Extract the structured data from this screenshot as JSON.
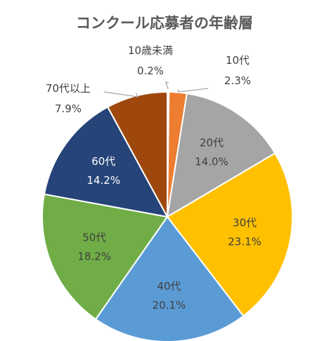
{
  "chart_data": {
    "type": "pie",
    "title": "コンクール応募者の年齢層",
    "categories": [
      "10歳未満",
      "10代",
      "20代",
      "30代",
      "40代",
      "50代",
      "60代",
      "70代以上"
    ],
    "values": [
      0.2,
      2.3,
      14.0,
      23.1,
      20.1,
      18.2,
      14.2,
      7.9
    ],
    "value_labels": [
      "0.2%",
      "2.3%",
      "14.0%",
      "23.1%",
      "20.1%",
      "18.2%",
      "14.2%",
      "7.9%"
    ],
    "colors": [
      "#9e9e9e",
      "#ed7d31",
      "#a5a5a5",
      "#ffc000",
      "#5b9bd5",
      "#70ad47",
      "#264478",
      "#9e480e"
    ],
    "label_style": [
      "outside",
      "outside",
      "inside-dark",
      "inside-dark",
      "inside-dark",
      "inside-dark",
      "inside-light",
      "outside"
    ],
    "start_angle": "12 o'clock",
    "direction": "clockwise",
    "legend": "none"
  }
}
